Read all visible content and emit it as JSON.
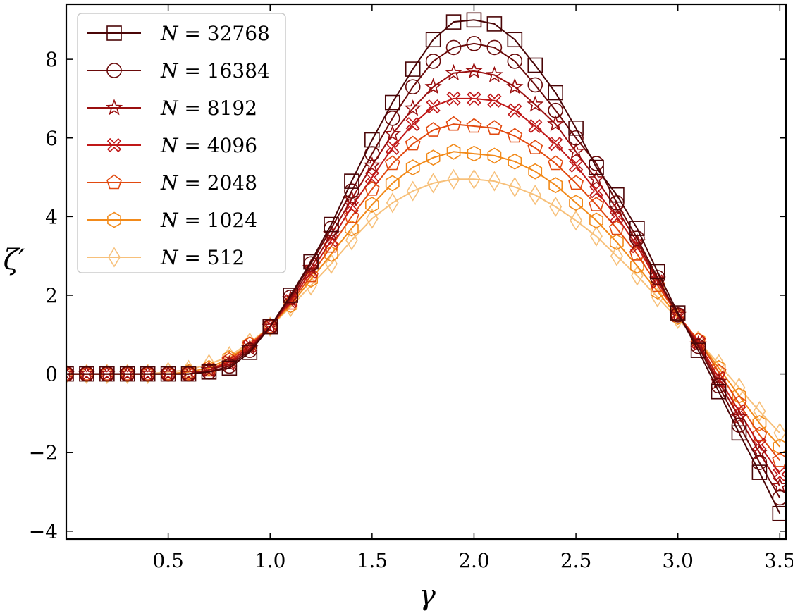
{
  "chart_data": {
    "type": "line",
    "title": "",
    "xlabel": "γ",
    "ylabel": "ζ′",
    "xlim": [
      0.0,
      3.53
    ],
    "ylim": [
      -4.2,
      9.4
    ],
    "xticks": [
      0.5,
      1.0,
      1.5,
      2.0,
      2.5,
      3.0,
      3.5
    ],
    "xtick_labels": [
      "0.5",
      "1.0",
      "1.5",
      "2.0",
      "2.5",
      "3.0",
      "3.5"
    ],
    "yticks": [
      -4,
      -2,
      0,
      2,
      4,
      6,
      8
    ],
    "ytick_labels": [
      "−4",
      "−2",
      "0",
      "2",
      "4",
      "6",
      "8"
    ],
    "grid": false,
    "legend_position": "top-left",
    "x": [
      0.0,
      0.1,
      0.2,
      0.3,
      0.4,
      0.5,
      0.6,
      0.7,
      0.8,
      0.9,
      1.0,
      1.1,
      1.2,
      1.3,
      1.4,
      1.5,
      1.6,
      1.7,
      1.8,
      1.9,
      2.0,
      2.1,
      2.2,
      2.3,
      2.4,
      2.5,
      2.6,
      2.7,
      2.8,
      2.9,
      3.0,
      3.1,
      3.2,
      3.3,
      3.4,
      3.5
    ],
    "series": [
      {
        "name": "N = 32768",
        "n_label": "32768",
        "color": "#4a0507",
        "marker": "square",
        "values": [
          0.0,
          0.0,
          0.0,
          0.0,
          0.0,
          0.0,
          0.0,
          0.05,
          0.15,
          0.55,
          1.2,
          2.0,
          2.85,
          3.8,
          4.9,
          5.95,
          6.9,
          7.75,
          8.5,
          8.95,
          9.0,
          8.9,
          8.5,
          7.85,
          7.15,
          6.25,
          5.25,
          4.55,
          3.7,
          2.6,
          1.55,
          0.6,
          -0.45,
          -1.5,
          -2.5,
          -3.55
        ]
      },
      {
        "name": "N = 16384",
        "n_label": "16384",
        "color": "#6a0a0a",
        "marker": "circle",
        "values": [
          0.0,
          0.0,
          0.0,
          0.0,
          0.0,
          0.0,
          0.0,
          0.05,
          0.2,
          0.6,
          1.2,
          1.95,
          2.8,
          3.7,
          4.65,
          5.6,
          6.5,
          7.3,
          7.95,
          8.3,
          8.4,
          8.3,
          7.95,
          7.35,
          6.7,
          6.0,
          5.35,
          4.35,
          3.45,
          2.45,
          1.5,
          0.7,
          -0.3,
          -1.3,
          -2.25,
          -3.15
        ]
      },
      {
        "name": "N = 8192",
        "n_label": "8192",
        "color": "#9a0f0f",
        "marker": "star",
        "values": [
          0.0,
          0.0,
          0.0,
          0.0,
          0.0,
          0.0,
          0.0,
          0.1,
          0.25,
          0.65,
          1.2,
          1.9,
          2.7,
          3.55,
          4.45,
          5.3,
          6.1,
          6.75,
          7.3,
          7.65,
          7.7,
          7.6,
          7.3,
          6.85,
          6.35,
          5.65,
          4.95,
          4.2,
          3.35,
          2.4,
          1.5,
          0.75,
          -0.2,
          -1.1,
          -2.0,
          -2.85
        ]
      },
      {
        "name": "N = 4096",
        "n_label": "4096",
        "color": "#c01818",
        "marker": "xcross",
        "values": [
          0.0,
          0.0,
          0.0,
          0.0,
          0.0,
          0.0,
          0.0,
          0.1,
          0.3,
          0.7,
          1.2,
          1.85,
          2.6,
          3.4,
          4.25,
          5.0,
          5.75,
          6.35,
          6.8,
          7.0,
          7.0,
          6.95,
          6.7,
          6.3,
          5.85,
          5.3,
          4.65,
          4.0,
          3.25,
          2.35,
          1.5,
          0.8,
          -0.1,
          -0.95,
          -1.8,
          -2.55
        ]
      },
      {
        "name": "N = 2048",
        "n_label": "2048",
        "color": "#e24a10",
        "marker": "pentagon",
        "values": [
          0.0,
          0.0,
          0.0,
          0.0,
          0.0,
          0.0,
          0.0,
          0.1,
          0.35,
          0.75,
          1.2,
          1.8,
          2.5,
          3.25,
          4.0,
          4.7,
          5.35,
          5.85,
          6.2,
          6.35,
          6.3,
          6.25,
          6.05,
          5.75,
          5.35,
          4.85,
          4.3,
          3.7,
          3.05,
          2.25,
          1.5,
          0.85,
          0.05,
          -0.75,
          -1.55,
          -2.2
        ]
      },
      {
        "name": "N = 1024",
        "n_label": "1024",
        "color": "#f28a1a",
        "marker": "hexagon",
        "values": [
          0.0,
          0.0,
          0.0,
          0.0,
          0.0,
          0.0,
          0.05,
          0.15,
          0.4,
          0.75,
          1.2,
          1.75,
          2.4,
          3.05,
          3.7,
          4.3,
          4.85,
          5.25,
          5.5,
          5.65,
          5.6,
          5.55,
          5.4,
          5.15,
          4.8,
          4.35,
          3.9,
          3.35,
          2.75,
          2.1,
          1.45,
          0.85,
          0.15,
          -0.55,
          -1.25,
          -1.85
        ]
      },
      {
        "name": "N = 512",
        "n_label": "512",
        "color": "#f7c07a",
        "marker": "diamond",
        "values": [
          0.0,
          0.0,
          0.0,
          0.0,
          0.0,
          0.05,
          0.1,
          0.25,
          0.45,
          0.8,
          1.2,
          1.7,
          2.25,
          2.8,
          3.4,
          3.95,
          4.35,
          4.65,
          4.85,
          4.95,
          4.95,
          4.9,
          4.75,
          4.55,
          4.25,
          3.9,
          3.5,
          3.0,
          2.5,
          1.95,
          1.4,
          0.85,
          0.25,
          -0.35,
          -0.95,
          -1.5
        ]
      }
    ]
  }
}
